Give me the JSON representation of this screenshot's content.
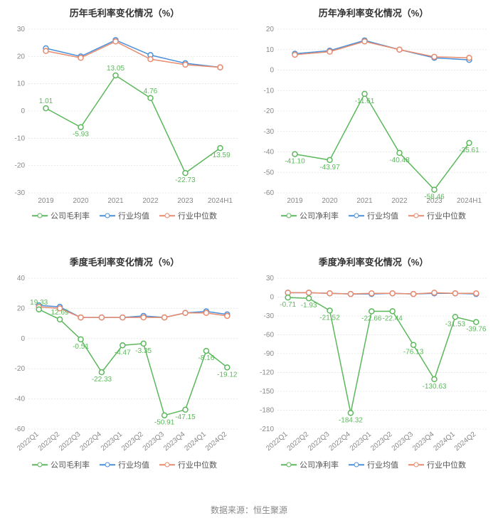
{
  "footer": "数据来源：恒生聚源",
  "legend_labels": {
    "gross": [
      "公司毛利率",
      "行业均值",
      "行业中位数"
    ],
    "net": [
      "公司净利率",
      "行业均值",
      "行业中位数"
    ]
  },
  "series_colors": {
    "company": "#5cb85c",
    "industry_avg": "#4a90d9",
    "industry_median": "#e88b6f"
  },
  "styling": {
    "background_color": "#ffffff",
    "grid_color": "#e8e8e8",
    "text_color": "#888888",
    "title_color": "#333333",
    "title_fontsize": 13,
    "axis_fontsize": 10,
    "legend_fontsize": 11,
    "line_width": 1.5,
    "marker_radius": 3.5,
    "marker_style": "hollow-circle"
  },
  "panels": [
    {
      "id": "annual-gross",
      "title": "历年毛利率变化情况（%）",
      "legend_set": "gross",
      "x_rotated": false,
      "x_labels": [
        "2019",
        "2020",
        "2021",
        "2022",
        "2023",
        "2024H1"
      ],
      "ylim": [
        -30,
        30
      ],
      "ytick_step": 10,
      "series": [
        {
          "key": "company",
          "values": [
            1.01,
            -5.93,
            13.05,
            4.76,
            -22.73,
            -13.59
          ],
          "value_labels": [
            "1.01",
            "-5.93",
            "13.05",
            "4.76",
            "-22.73",
            "-13.59"
          ]
        },
        {
          "key": "industry_avg",
          "values": [
            23.0,
            20.0,
            26.0,
            20.5,
            17.5,
            16.0
          ]
        },
        {
          "key": "industry_median",
          "values": [
            22.0,
            19.5,
            25.5,
            19.0,
            17.0,
            16.0
          ]
        }
      ]
    },
    {
      "id": "annual-net",
      "title": "历年净利率变化情况（%）",
      "legend_set": "net",
      "x_rotated": false,
      "x_labels": [
        "2019",
        "2020",
        "2021",
        "2022",
        "2023",
        "2024H1"
      ],
      "ylim": [
        -60,
        20
      ],
      "ytick_step": 10,
      "series": [
        {
          "key": "company",
          "values": [
            -41.1,
            -43.97,
            -11.61,
            -40.48,
            -58.46,
            -35.61
          ],
          "value_labels": [
            "-41.10",
            "-43.97",
            "-11.61",
            "-40.48",
            "-58.46",
            "-35.61"
          ]
        },
        {
          "key": "industry_avg",
          "values": [
            8.0,
            9.5,
            14.5,
            10.0,
            6.0,
            5.0
          ]
        },
        {
          "key": "industry_median",
          "values": [
            7.5,
            9.0,
            14.0,
            10.0,
            6.5,
            6.0
          ]
        }
      ]
    },
    {
      "id": "quarter-gross",
      "title": "季度毛利率变化情况（%）",
      "legend_set": "gross",
      "x_rotated": true,
      "x_labels": [
        "2022Q1",
        "2022Q2",
        "2022Q3",
        "2022Q4",
        "2023Q1",
        "2023Q2",
        "2023Q3",
        "2023Q4",
        "2024Q1",
        "2024Q2"
      ],
      "ylim": [
        -60,
        40
      ],
      "ytick_step": 20,
      "series": [
        {
          "key": "company",
          "values": [
            19.33,
            12.69,
            -0.51,
            -22.33,
            -4.47,
            -3.35,
            -50.91,
            -47.15,
            -8.16,
            -19.12
          ],
          "value_labels": [
            "19.33",
            "12.69",
            "-0.51",
            "-22.33",
            "-4.47",
            "-3.35",
            "-50.91",
            "-47.15",
            "-8.16",
            "-19.12"
          ]
        },
        {
          "key": "industry_avg",
          "values": [
            22,
            21,
            14,
            14,
            14,
            15,
            14,
            17,
            18,
            16
          ]
        },
        {
          "key": "industry_median",
          "values": [
            21,
            20,
            14,
            14,
            14,
            14,
            14,
            17,
            17,
            15
          ]
        }
      ]
    },
    {
      "id": "quarter-net",
      "title": "季度净利率变化情况（%）",
      "legend_set": "net",
      "x_rotated": true,
      "x_labels": [
        "2022Q1",
        "2022Q2",
        "2022Q3",
        "2022Q4",
        "2023Q1",
        "2023Q2",
        "2023Q3",
        "2023Q4",
        "2024Q1",
        "2024Q2"
      ],
      "ylim": [
        -210,
        30
      ],
      "ytick_step": 30,
      "series": [
        {
          "key": "company",
          "values": [
            -0.71,
            -1.93,
            -21.52,
            -184.32,
            -22.66,
            -22.44,
            -76.13,
            -130.63,
            -31.53,
            -39.76
          ],
          "value_labels": [
            "-0.71",
            "-1.93",
            "-21.52",
            "-184.32",
            "-22.66",
            "-22.44",
            "-76.13",
            "-130.63",
            "-31.53",
            "-39.76"
          ]
        },
        {
          "key": "industry_avg",
          "values": [
            7,
            7,
            6,
            5,
            5,
            6,
            5,
            6,
            6,
            5
          ]
        },
        {
          "key": "industry_median",
          "values": [
            7,
            7,
            6,
            5,
            6,
            6,
            5,
            7,
            6,
            6
          ]
        }
      ]
    }
  ]
}
